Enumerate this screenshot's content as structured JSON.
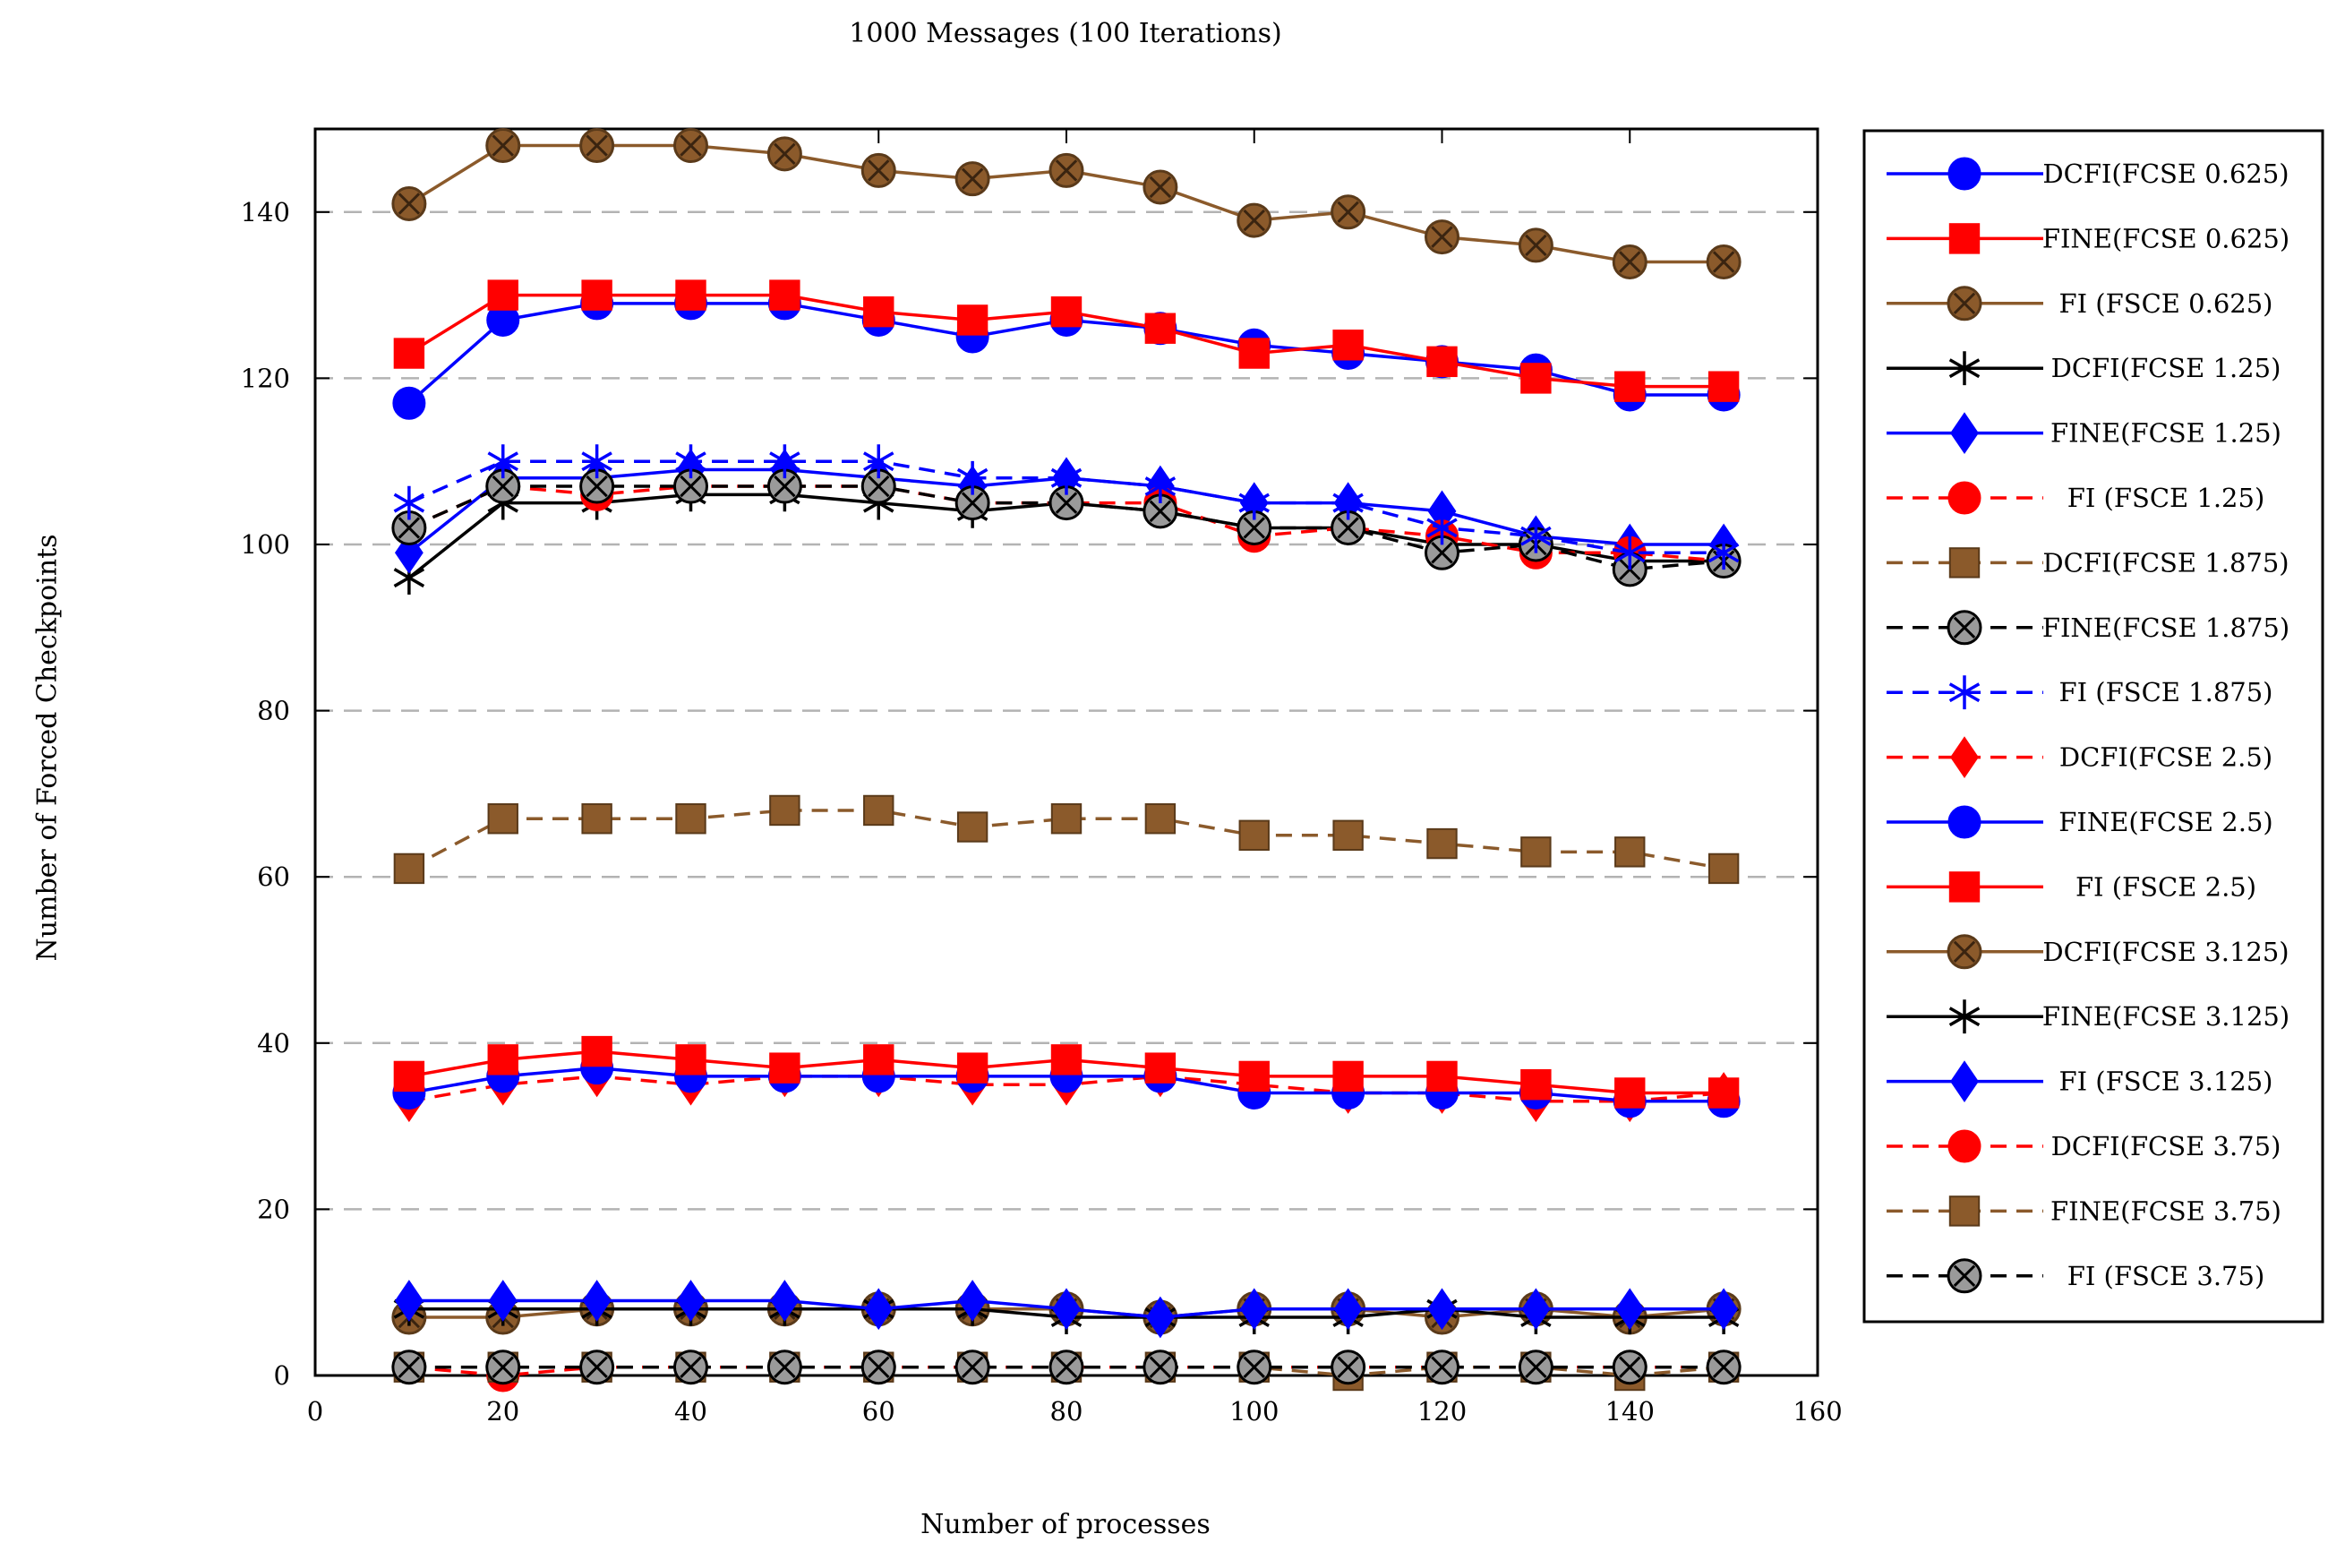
{
  "chart_data": {
    "type": "line",
    "title": "1000 Messages (100 Iterations)",
    "xlabel": "Number of processes",
    "ylabel": "Number of Forced Checkpoints",
    "xlim": [
      0,
      160
    ],
    "ylim": [
      0,
      150
    ],
    "xticks": [
      0,
      20,
      40,
      60,
      80,
      100,
      120,
      140,
      160
    ],
    "yticks": [
      0,
      20,
      40,
      60,
      80,
      100,
      120,
      140
    ],
    "grid": "horizontal dashed",
    "legend_position": "outside-right",
    "x": [
      10,
      20,
      30,
      40,
      50,
      60,
      70,
      80,
      90,
      100,
      110,
      120,
      130,
      140,
      150
    ],
    "series": [
      {
        "name": "DCFI(FCSE 0.625)",
        "color": "#0000ff",
        "dash": "solid",
        "marker": "circle",
        "values": [
          117,
          127,
          129,
          129,
          129,
          127,
          125,
          127,
          126,
          124,
          123,
          122,
          121,
          118,
          118
        ]
      },
      {
        "name": "FINE(FCSE 0.625)",
        "color": "#ff0000",
        "dash": "solid",
        "marker": "square",
        "values": [
          123,
          130,
          130,
          130,
          130,
          128,
          127,
          128,
          126,
          123,
          124,
          122,
          120,
          119,
          119
        ]
      },
      {
        "name": "FI (FSCE 0.625)",
        "color": "#8b5a2b",
        "dash": "solid",
        "marker": "circle-x",
        "values": [
          141,
          148,
          148,
          148,
          147,
          145,
          144,
          145,
          143,
          139,
          140,
          137,
          136,
          134,
          134
        ]
      },
      {
        "name": "DCFI(FCSE 1.25)",
        "color": "#000000",
        "dash": "solid",
        "marker": "asterisk",
        "values": [
          96,
          105,
          105,
          106,
          106,
          105,
          104,
          105,
          104,
          102,
          102,
          100,
          100,
          98,
          98
        ]
      },
      {
        "name": "FINE(FCSE 1.25)",
        "color": "#0000ff",
        "dash": "solid",
        "marker": "diamond",
        "values": [
          99,
          108,
          108,
          109,
          109,
          108,
          107,
          108,
          107,
          105,
          105,
          104,
          101,
          100,
          100
        ]
      },
      {
        "name": "FI (FSCE 1.25)",
        "color": "#ff0000",
        "dash": "dashed",
        "marker": "circle",
        "values": [
          102,
          107,
          106,
          107,
          107,
          107,
          105,
          105,
          105,
          101,
          102,
          101,
          99,
          99,
          98
        ]
      },
      {
        "name": "DCFI(FCSE 1.875)",
        "color": "#8b5a2b",
        "dash": "dashed",
        "marker": "square",
        "values": [
          61,
          67,
          67,
          67,
          68,
          68,
          66,
          67,
          67,
          65,
          65,
          64,
          63,
          63,
          61
        ]
      },
      {
        "name": "FINE(FCSE 1.875)",
        "color": "#000000",
        "dash": "dashed",
        "marker": "circle-x",
        "values": [
          102,
          107,
          107,
          107,
          107,
          107,
          105,
          105,
          104,
          102,
          102,
          99,
          100,
          97,
          98
        ]
      },
      {
        "name": "FI (FSCE 1.875)",
        "color": "#0000ff",
        "dash": "dashed",
        "marker": "asterisk",
        "values": [
          105,
          110,
          110,
          110,
          110,
          110,
          108,
          108,
          107,
          105,
          105,
          102,
          101,
          99,
          99
        ]
      },
      {
        "name": "DCFI(FCSE 2.5)",
        "color": "#ff0000",
        "dash": "dashed",
        "marker": "diamond",
        "values": [
          33,
          35,
          36,
          35,
          36,
          36,
          35,
          35,
          36,
          35,
          34,
          34,
          33,
          33,
          34
        ]
      },
      {
        "name": "FINE(FCSE 2.5)",
        "color": "#0000ff",
        "dash": "solid",
        "marker": "circle",
        "values": [
          34,
          36,
          37,
          36,
          36,
          36,
          36,
          36,
          36,
          34,
          34,
          34,
          34,
          33,
          33
        ]
      },
      {
        "name": "FI (FSCE 2.5)",
        "color": "#ff0000",
        "dash": "solid",
        "marker": "square",
        "values": [
          36,
          38,
          39,
          38,
          37,
          38,
          37,
          38,
          37,
          36,
          36,
          36,
          35,
          34,
          34
        ]
      },
      {
        "name": "DCFI(FCSE 3.125)",
        "color": "#8b5a2b",
        "dash": "solid",
        "marker": "circle-x",
        "values": [
          7,
          7,
          8,
          8,
          8,
          8,
          8,
          8,
          7,
          8,
          8,
          7,
          8,
          7,
          8
        ]
      },
      {
        "name": "FINE(FCSE 3.125)",
        "color": "#000000",
        "dash": "solid",
        "marker": "asterisk",
        "values": [
          8,
          8,
          8,
          8,
          8,
          8,
          8,
          7,
          7,
          7,
          7,
          8,
          7,
          7,
          7
        ]
      },
      {
        "name": "FI (FSCE 3.125)",
        "color": "#0000ff",
        "dash": "solid",
        "marker": "diamond",
        "values": [
          9,
          9,
          9,
          9,
          9,
          8,
          9,
          8,
          7,
          8,
          8,
          8,
          8,
          8,
          8
        ]
      },
      {
        "name": "DCFI(FCSE 3.75)",
        "color": "#ff0000",
        "dash": "dashed",
        "marker": "circle",
        "values": [
          1,
          0,
          1,
          1,
          1,
          1,
          1,
          1,
          1,
          1,
          1,
          1,
          1,
          1,
          1
        ]
      },
      {
        "name": "FINE(FCSE 3.75)",
        "color": "#8b5a2b",
        "dash": "dashed",
        "marker": "square",
        "values": [
          1,
          1,
          1,
          1,
          1,
          1,
          1,
          1,
          1,
          1,
          0,
          1,
          1,
          0,
          1
        ]
      },
      {
        "name": "FI (FSCE 3.75)",
        "color": "#000000",
        "dash": "dashed",
        "marker": "circle-x",
        "values": [
          1,
          1,
          1,
          1,
          1,
          1,
          1,
          1,
          1,
          1,
          1,
          1,
          1,
          1,
          1
        ]
      }
    ]
  }
}
